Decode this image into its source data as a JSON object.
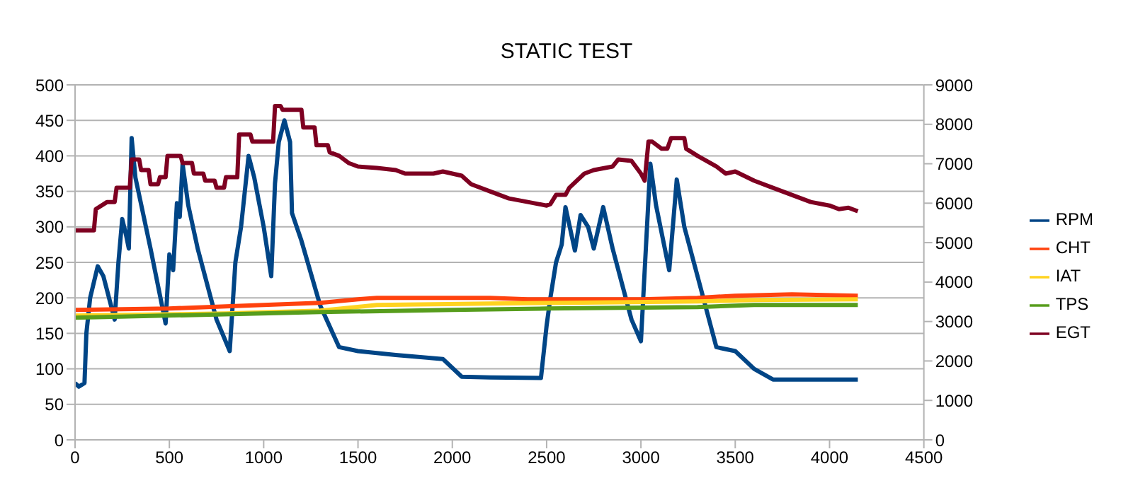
{
  "chart_data": {
    "type": "line",
    "title": "STATIC TEST",
    "xlim": [
      0,
      4500
    ],
    "xticks": [
      0,
      500,
      1000,
      1500,
      2000,
      2500,
      3000,
      3500,
      4000,
      4500
    ],
    "ylim": [
      0,
      500
    ],
    "yticks": [
      0,
      50,
      100,
      150,
      200,
      250,
      300,
      350,
      400,
      450,
      500
    ],
    "y2lim": [
      0,
      9000
    ],
    "y2ticks": [
      0,
      1000,
      2000,
      3000,
      4000,
      5000,
      6000,
      7000,
      8000,
      9000
    ],
    "grid": "y",
    "legend": "right",
    "marker": "none",
    "line_style": "solid",
    "series": [
      {
        "name": "RPM",
        "color": "#004586",
        "axis": "y2",
        "x": [
          0,
          20,
          50,
          60,
          80,
          120,
          150,
          210,
          230,
          250,
          270,
          285,
          300,
          320,
          400,
          480,
          500,
          520,
          540,
          555,
          570,
          600,
          650,
          750,
          820,
          850,
          880,
          920,
          950,
          1000,
          1040,
          1060,
          1080,
          1110,
          1140,
          1150,
          1200,
          1300,
          1400,
          1500,
          1700,
          1950,
          2050,
          2200,
          2470,
          2500,
          2520,
          2550,
          2580,
          2600,
          2650,
          2680,
          2720,
          2750,
          2800,
          2850,
          2950,
          3000,
          3050,
          3080,
          3150,
          3190,
          3230,
          3300,
          3400,
          3500,
          3600,
          3700,
          4150
        ],
        "values": [
          1440,
          1350,
          1440,
          2700,
          3600,
          4400,
          4150,
          3050,
          4500,
          5600,
          5200,
          4850,
          7650,
          6650,
          4850,
          2950,
          4700,
          4300,
          6000,
          5650,
          7000,
          5950,
          4850,
          3050,
          2250,
          4500,
          5400,
          7200,
          6650,
          5400,
          4150,
          6500,
          7550,
          8100,
          7550,
          5750,
          5050,
          3400,
          2350,
          2250,
          2150,
          2050,
          1600,
          1580,
          1570,
          2900,
          3600,
          4500,
          4950,
          5900,
          4800,
          5700,
          5400,
          4850,
          5900,
          4850,
          3050,
          2500,
          7000,
          5950,
          4300,
          6600,
          5400,
          4150,
          2350,
          2250,
          1800,
          1530,
          1530
        ]
      },
      {
        "name": "CHT",
        "color": "#ff420e",
        "x": [
          0,
          500,
          800,
          1000,
          1300,
          1500,
          1600,
          2200,
          2400,
          3000,
          3300,
          3500,
          3800,
          4150
        ],
        "values": [
          183,
          185,
          188,
          190,
          193,
          198,
          200,
          200,
          198,
          198,
          200,
          203,
          205,
          203
        ]
      },
      {
        "name": "IAT",
        "color": "#ffd320",
        "x": [
          0,
          800,
          1300,
          1600,
          2200,
          2600,
          3300,
          3600,
          4150
        ],
        "values": [
          175,
          178,
          182,
          190,
          192,
          193,
          195,
          197,
          198
        ]
      },
      {
        "name": "TPS",
        "color": "#579d1c",
        "x": [
          0,
          1300,
          2000,
          2500,
          3300,
          3600,
          4150
        ],
        "values": [
          172,
          180,
          183,
          185,
          187,
          190,
          190
        ]
      },
      {
        "name": "EGT",
        "color": "#7e0021",
        "x": [
          0,
          100,
          110,
          170,
          210,
          220,
          290,
          300,
          340,
          350,
          390,
          400,
          440,
          450,
          480,
          490,
          560,
          570,
          620,
          630,
          680,
          690,
          740,
          750,
          790,
          800,
          860,
          870,
          930,
          940,
          1050,
          1060,
          1090,
          1100,
          1200,
          1210,
          1270,
          1280,
          1340,
          1350,
          1400,
          1450,
          1500,
          1600,
          1700,
          1750,
          1900,
          1950,
          2050,
          2100,
          2200,
          2300,
          2400,
          2500,
          2520,
          2550,
          2600,
          2620,
          2700,
          2750,
          2850,
          2880,
          2950,
          3000,
          3020,
          3040,
          3060,
          3110,
          3140,
          3160,
          3230,
          3240,
          3300,
          3400,
          3450,
          3500,
          3600,
          3700,
          3800,
          3900,
          4000,
          4050,
          4100,
          4150
        ],
        "values": [
          295,
          295,
          325,
          335,
          335,
          355,
          355,
          395,
          395,
          380,
          380,
          360,
          360,
          370,
          370,
          400,
          400,
          390,
          390,
          375,
          375,
          365,
          365,
          355,
          355,
          370,
          370,
          430,
          430,
          420,
          420,
          470,
          470,
          465,
          465,
          440,
          440,
          415,
          415,
          405,
          400,
          390,
          385,
          383,
          380,
          375,
          375,
          378,
          372,
          360,
          350,
          340,
          335,
          330,
          332,
          345,
          345,
          355,
          375,
          380,
          385,
          395,
          393,
          375,
          365,
          420,
          420,
          410,
          410,
          425,
          425,
          410,
          400,
          385,
          375,
          378,
          365,
          355,
          345,
          335,
          330,
          325,
          327,
          322
        ]
      }
    ]
  }
}
